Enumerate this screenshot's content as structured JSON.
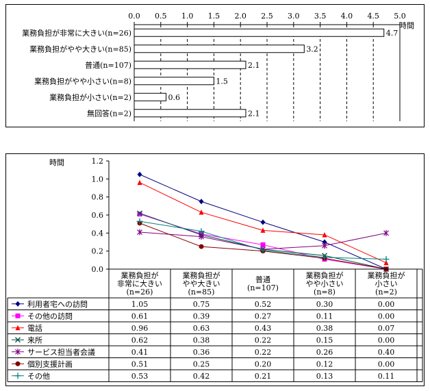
{
  "chart_data": [
    {
      "type": "bar",
      "orientation": "horizontal",
      "unit_label": "時間",
      "categories": [
        "業務負担が非常に大きい(n=26)",
        "業務負担がやや大きい(n=85)",
        "普通(n=107)",
        "業務負担がやや小さい(n=8)",
        "業務負担が小さい(n=2)",
        "無回答(n=2)"
      ],
      "values": [
        4.7,
        3.2,
        2.1,
        1.5,
        0.6,
        2.1
      ],
      "value_labels": [
        "4.7",
        "3.2",
        "2.1",
        "1.5",
        "0.6",
        "2.1"
      ],
      "xlim": [
        0,
        5
      ],
      "ticks": [
        "0.0",
        "0.5",
        "1.0",
        "1.5",
        "2.0",
        "2.5",
        "3.0",
        "3.5",
        "4.0",
        "4.5",
        "5.0"
      ],
      "grid": true
    },
    {
      "type": "line",
      "unit_label": "時間",
      "ylim": [
        0,
        1.2
      ],
      "yticks": [
        "0.0",
        "0.2",
        "0.4",
        "0.6",
        "0.8",
        "1.0",
        "1.2"
      ],
      "categories": [
        [
          "業務負担が",
          "非常に大きい",
          "(n=26)"
        ],
        [
          "業務負担が",
          "やや大きい",
          "(n=85)"
        ],
        [
          "普通",
          "(n=107)"
        ],
        [
          "業務負担が",
          "やや小さい",
          "(n=8)"
        ],
        [
          "業務負担が",
          "小さい",
          "(n=2)"
        ]
      ],
      "series": [
        {
          "name": "利用者宅への訪問",
          "values": [
            1.05,
            0.75,
            0.52,
            0.3,
            0.0
          ],
          "labels": [
            "1.05",
            "0.75",
            "0.52",
            "0.30",
            "0.00"
          ],
          "color": "#000080",
          "marker": "diamond"
        },
        {
          "name": "その他の訪問",
          "values": [
            0.61,
            0.39,
            0.27,
            0.11,
            0.0
          ],
          "labels": [
            "0.61",
            "0.39",
            "0.27",
            "0.11",
            "0.00"
          ],
          "color": "#ff00ff",
          "marker": "square"
        },
        {
          "name": "電話",
          "values": [
            0.96,
            0.63,
            0.43,
            0.38,
            0.07
          ],
          "labels": [
            "0.96",
            "0.63",
            "0.43",
            "0.38",
            "0.07"
          ],
          "color": "#ff0000",
          "marker": "triangle"
        },
        {
          "name": "来所",
          "values": [
            0.62,
            0.38,
            0.22,
            0.15,
            0.0
          ],
          "labels": [
            "0.62",
            "0.38",
            "0.22",
            "0.15",
            "0.00"
          ],
          "color": "#004d40",
          "marker": "x"
        },
        {
          "name": "サービス担当者会議",
          "values": [
            0.41,
            0.36,
            0.22,
            0.26,
            0.4
          ],
          "labels": [
            "0.41",
            "0.36",
            "0.22",
            "0.26",
            "0.40"
          ],
          "color": "#800080",
          "marker": "star"
        },
        {
          "name": "個別支援計画",
          "values": [
            0.51,
            0.25,
            0.2,
            0.12,
            0.0
          ],
          "labels": [
            "0.51",
            "0.25",
            "0.20",
            "0.12",
            "0.00"
          ],
          "color": "#800000",
          "marker": "circle"
        },
        {
          "name": "その他",
          "values": [
            0.53,
            0.42,
            0.21,
            0.13,
            0.11
          ],
          "labels": [
            "0.53",
            "0.42",
            "0.21",
            "0.13",
            "0.11"
          ],
          "color": "#008080",
          "marker": "plus"
        }
      ]
    }
  ]
}
